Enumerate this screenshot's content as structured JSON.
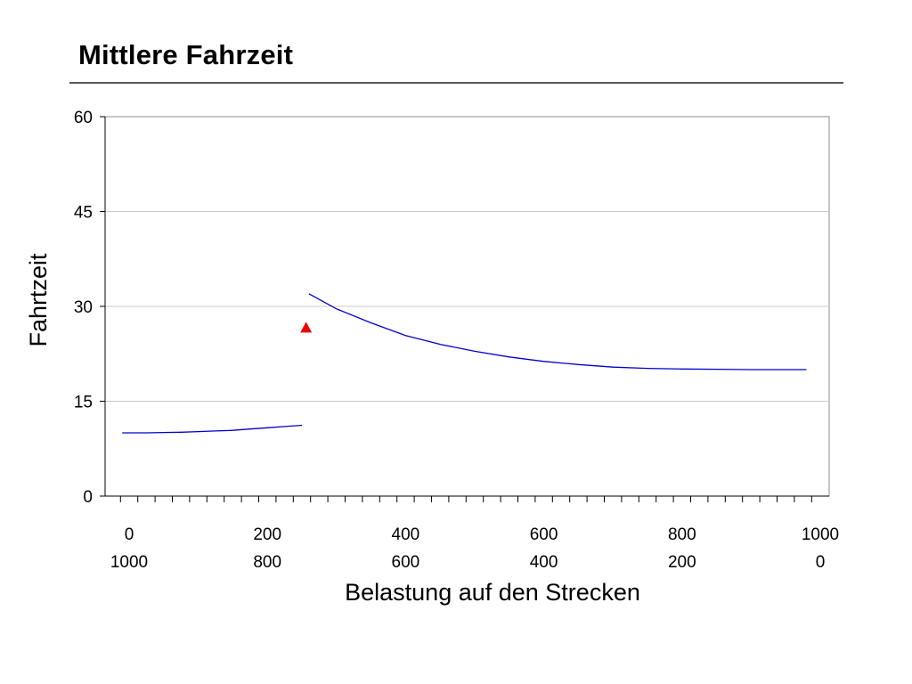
{
  "slide": {
    "title": "Mittlere Fahrzeit"
  },
  "chart_data": {
    "type": "line",
    "title": "",
    "xlabel": "Belastung auf den Strecken",
    "ylabel": "Fahrtzeit",
    "xlim": [
      0,
      1000
    ],
    "ylim": [
      0,
      60
    ],
    "yticks": [
      0,
      15,
      30,
      45,
      60
    ],
    "xticks_primary": [
      "0",
      "200",
      "400",
      "600",
      "800",
      "1000"
    ],
    "xticks_secondary": [
      "1000",
      "800",
      "600",
      "400",
      "200",
      "0"
    ],
    "grid": true,
    "legend": "none",
    "colors": {
      "line": "#0000cc",
      "marker": "#ee0000",
      "grid": "#c8c8c8"
    },
    "series": [
      {
        "color": "#0000cc",
        "x": [
          -10,
          25,
          50,
          75,
          100,
          125,
          150,
          175,
          200,
          225,
          250
        ],
        "y": [
          10.0,
          10.0,
          10.05,
          10.1,
          10.2,
          10.3,
          10.4,
          10.6,
          10.8,
          11.0,
          11.2
        ]
      },
      {
        "color": "#0000cc",
        "x": [
          260,
          300,
          350,
          400,
          450,
          500,
          550,
          600,
          650,
          700,
          750,
          800,
          850,
          900,
          950,
          980
        ],
        "y": [
          32.0,
          29.6,
          27.4,
          25.4,
          24.0,
          22.9,
          22.0,
          21.3,
          20.8,
          20.4,
          20.2,
          20.1,
          20.05,
          20.0,
          20.0,
          20.0
        ]
      }
    ],
    "markers": [
      {
        "shape": "triangle",
        "color": "#ee0000",
        "x": 256,
        "y": 26.7
      }
    ]
  }
}
